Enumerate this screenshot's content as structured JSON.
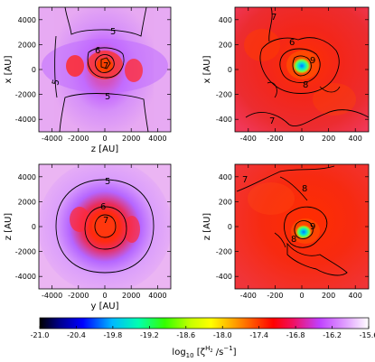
{
  "chart_data": [
    {
      "type": "heatmap",
      "position": "top-left",
      "xlabel": "z [AU]",
      "ylabel": "x [AU]",
      "xlim": [
        -5000,
        5000
      ],
      "ylim": [
        -5000,
        5000
      ],
      "xticks": [
        "-4000",
        "-2000",
        "0",
        "2000",
        "4000"
      ],
      "yticks": [
        "4000",
        "2000",
        "0",
        "-2000",
        "-4000"
      ],
      "contour_labels": [
        "5",
        "6",
        "7",
        "5",
        "5"
      ]
    },
    {
      "type": "heatmap",
      "position": "top-right",
      "xlabel": "",
      "ylabel": "x [AU]",
      "xlim": [
        -500,
        500
      ],
      "ylim": [
        -500,
        500
      ],
      "xticks": [
        "-400",
        "-200",
        "0",
        "200",
        "400"
      ],
      "yticks": [
        "400",
        "200",
        "0",
        "-200",
        "-400"
      ],
      "contour_labels": [
        "7",
        "6",
        "9",
        "8",
        "7"
      ]
    },
    {
      "type": "heatmap",
      "position": "bottom-left",
      "xlabel": "y [AU]",
      "ylabel": "z [AU]",
      "xlim": [
        -5000,
        5000
      ],
      "ylim": [
        -5000,
        5000
      ],
      "xticks": [
        "-4000",
        "-2000",
        "0",
        "2000",
        "4000"
      ],
      "yticks": [
        "4000",
        "2000",
        "0",
        "-2000",
        "-4000"
      ],
      "contour_labels": [
        "5",
        "6",
        "7"
      ]
    },
    {
      "type": "heatmap",
      "position": "bottom-right",
      "xlabel": "",
      "ylabel": "z [AU]",
      "xlim": [
        -500,
        500
      ],
      "ylim": [
        -500,
        500
      ],
      "xticks": [
        "-400",
        "-200",
        "0",
        "200",
        "400"
      ],
      "yticks": [
        "400",
        "200",
        "0",
        "-200",
        "-400"
      ],
      "contour_labels": [
        "8",
        "7",
        "9",
        "8"
      ]
    }
  ],
  "colorbar": {
    "ticks": [
      "-21.0",
      "-20.4",
      "-19.8",
      "-19.2",
      "-18.6",
      "-18.0",
      "-17.4",
      "-16.8",
      "-16.2",
      "-15.6"
    ],
    "label_main": "log",
    "label_sub": "10",
    "label_rest": " [ζ",
    "label_sup": "H",
    "label_supsub": "2",
    "label_tail": " /s",
    "label_exp": "−1",
    "label_end": "]",
    "range": [
      -21.0,
      -15.6
    ],
    "colors": [
      "#000000",
      "#00008b",
      "#0000ff",
      "#00b8ff",
      "#00ffb0",
      "#33ff00",
      "#c8ff00",
      "#ffff00",
      "#ffb000",
      "#ff5000",
      "#ff0000",
      "#f01060",
      "#c040ff",
      "#e0a0ff",
      "#ffffff"
    ]
  }
}
